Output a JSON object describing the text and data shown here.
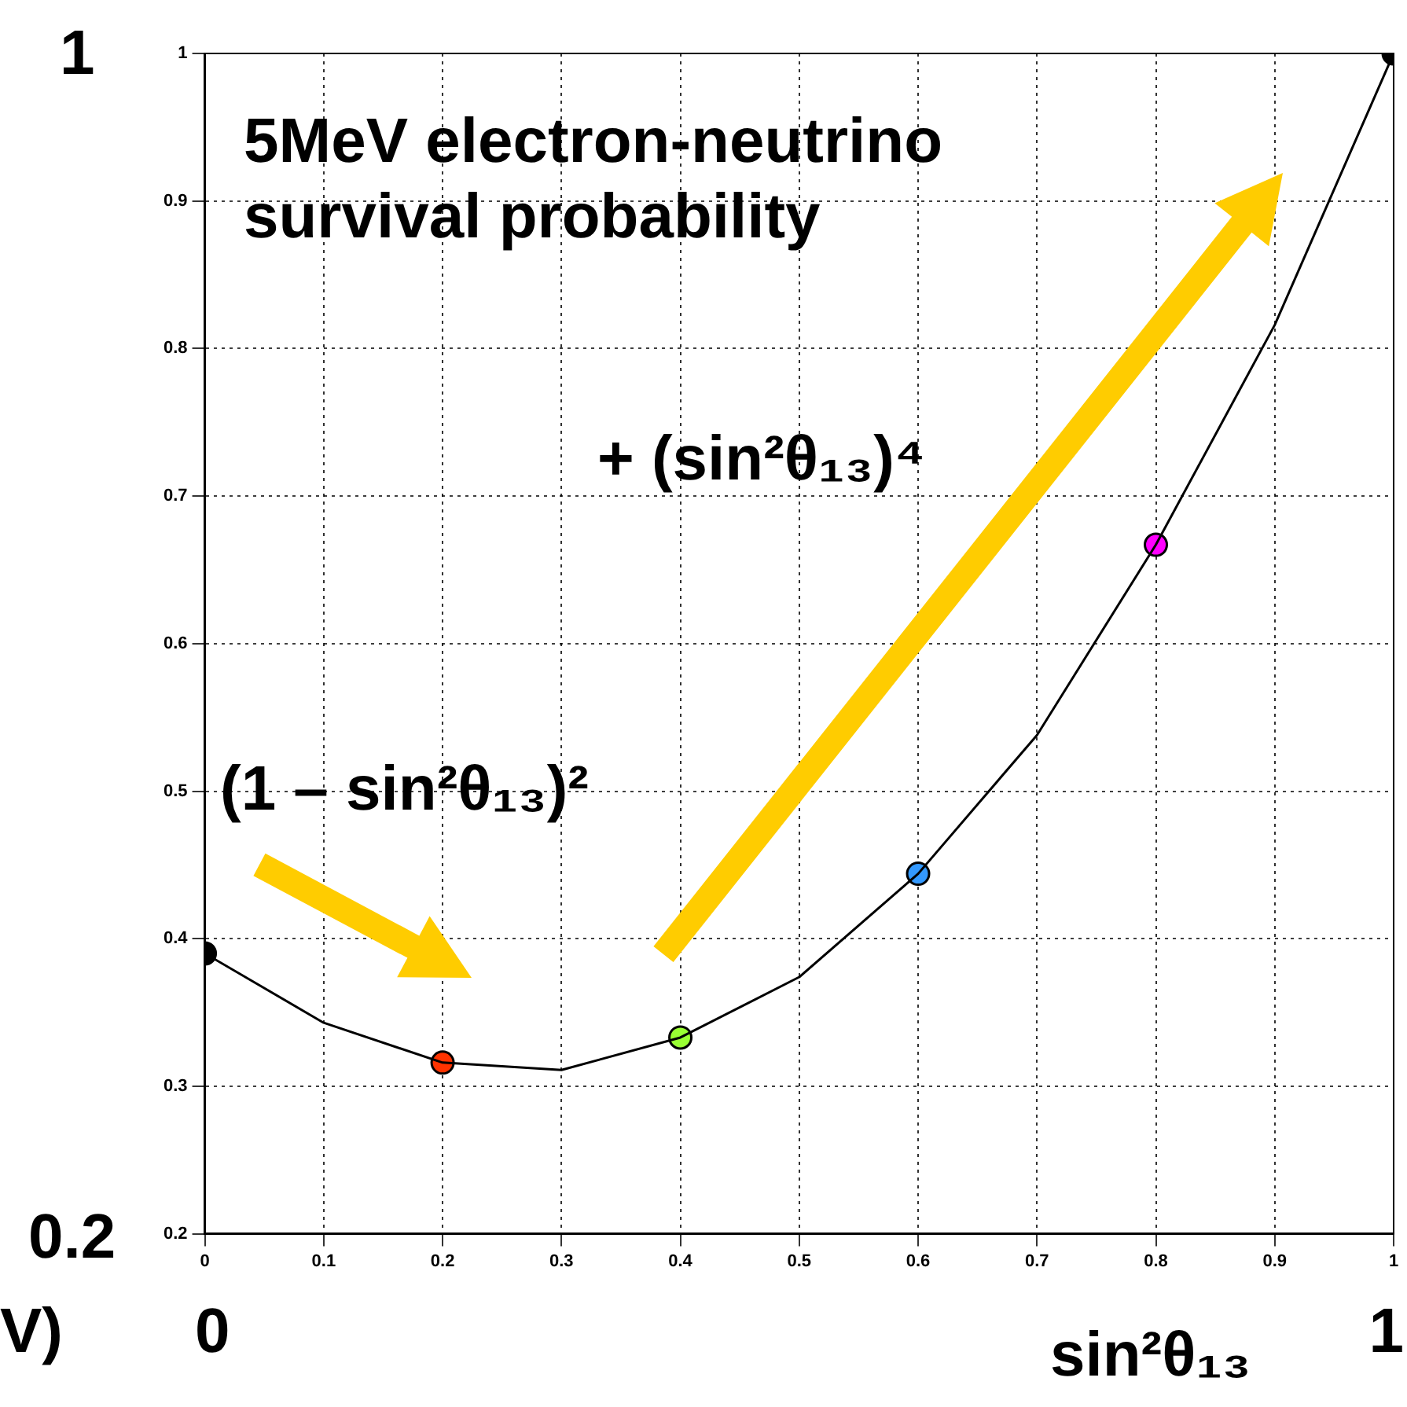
{
  "chart_data": {
    "type": "line",
    "title": "5MeV electron-neutrino survival probability",
    "xlabel": "sin²θ₁₃",
    "annotations": [
      "(1 – sin²θ₁₃)²",
      "+ (sin²θ₁₃)⁴",
      "1",
      "0.2",
      "0",
      "1",
      "V)"
    ],
    "series": [
      {
        "color": "#000000",
        "marker": "none",
        "x": [
          0,
          0.1,
          0.2,
          0.3,
          0.4,
          0.5,
          0.6,
          0.7,
          0.8,
          0.9,
          1
        ],
        "values": [
          0.39,
          0.343,
          0.316,
          0.311,
          0.333,
          0.374,
          0.444,
          0.538,
          0.667,
          0.816,
          1
        ]
      },
      {
        "type": "scatter",
        "marker": "circle",
        "x": [
          0,
          0.2,
          0.4,
          0.6,
          0.8,
          1
        ],
        "values": [
          0.39,
          0.316,
          0.333,
          0.444,
          0.667,
          1
        ],
        "colors": [
          "#000000",
          "#ff3300",
          "#99ff33",
          "#3399ff",
          "#ff00ff",
          "#000000"
        ]
      }
    ],
    "xlim": [
      0,
      1
    ],
    "ylim": [
      0.2,
      1
    ],
    "xticks": [
      0,
      0.1,
      0.2,
      0.3,
      0.4,
      0.5,
      0.6,
      0.7,
      0.8,
      0.9,
      1
    ],
    "yticks": [
      0.2,
      0.3,
      0.4,
      0.5,
      0.6,
      0.7,
      0.8,
      0.9,
      1
    ],
    "grid": true,
    "legend": false
  }
}
